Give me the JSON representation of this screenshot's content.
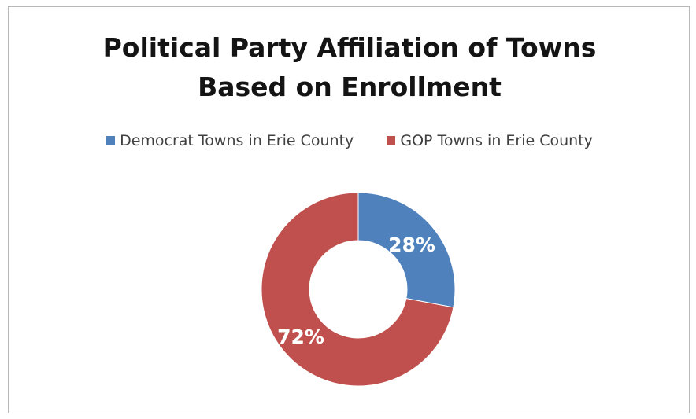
{
  "chart_data": {
    "type": "pie",
    "title": "Political Party Affiliation of Towns Based on Enrollment",
    "title_lines": [
      "Political Party Affiliation of Towns",
      "Based on Enrollment"
    ],
    "donut": true,
    "legend_position": "top",
    "slices": [
      {
        "name": "Democrat Towns in Erie County",
        "value": 28,
        "label": "28%",
        "color": "#4f81bd"
      },
      {
        "name": "GOP Towns in Erie County",
        "value": 72,
        "label": "72%",
        "color": "#c0504d"
      }
    ]
  }
}
